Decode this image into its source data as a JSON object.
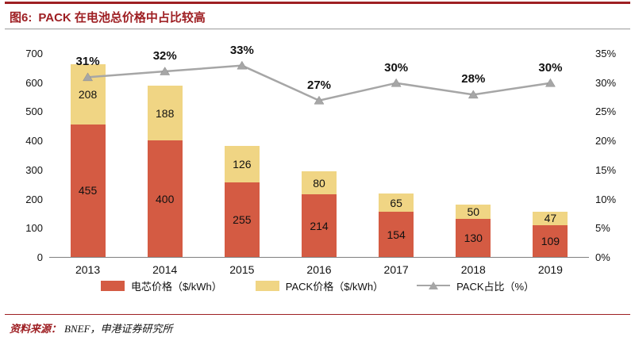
{
  "header": {
    "figure_label": "图6:",
    "title": "PACK 在电池总价格中占比较高"
  },
  "footer": {
    "source_label": "资料来源：",
    "source_text": "BNEF，申港证券研究所"
  },
  "colors": {
    "brand_red": "#9E1F23",
    "cell_bar": "#D45B43",
    "pack_bar": "#F0D584",
    "line_gray": "#A6A6A6"
  },
  "chart_data": {
    "type": "bar",
    "subtype": "stacked-bars-with-line",
    "categories": [
      "2013",
      "2014",
      "2015",
      "2016",
      "2017",
      "2018",
      "2019"
    ],
    "series": [
      {
        "name": "电芯价格（$/kWh）",
        "type": "bar",
        "values": [
          455,
          400,
          255,
          214,
          154,
          130,
          109
        ]
      },
      {
        "name": "PACK价格（$/kWh）",
        "type": "bar",
        "values": [
          208,
          188,
          126,
          80,
          65,
          50,
          47
        ]
      },
      {
        "name": "PACK占比（%）",
        "type": "line",
        "values": [
          31,
          32,
          33,
          27,
          30,
          28,
          30
        ],
        "labels": [
          "31%",
          "32%",
          "33%",
          "27%",
          "30%",
          "28%",
          "30%"
        ]
      }
    ],
    "left_axis": {
      "min": 0,
      "max": 700,
      "step": 100,
      "ticks": [
        "700",
        "600",
        "500",
        "400",
        "300",
        "200",
        "100",
        "0"
      ]
    },
    "right_axis": {
      "min": 0,
      "max": 35,
      "step": 5,
      "ticks": [
        "35%",
        "30%",
        "25%",
        "20%",
        "15%",
        "10%",
        "5%",
        "0%"
      ]
    },
    "legend_position": "bottom",
    "grid": false
  }
}
